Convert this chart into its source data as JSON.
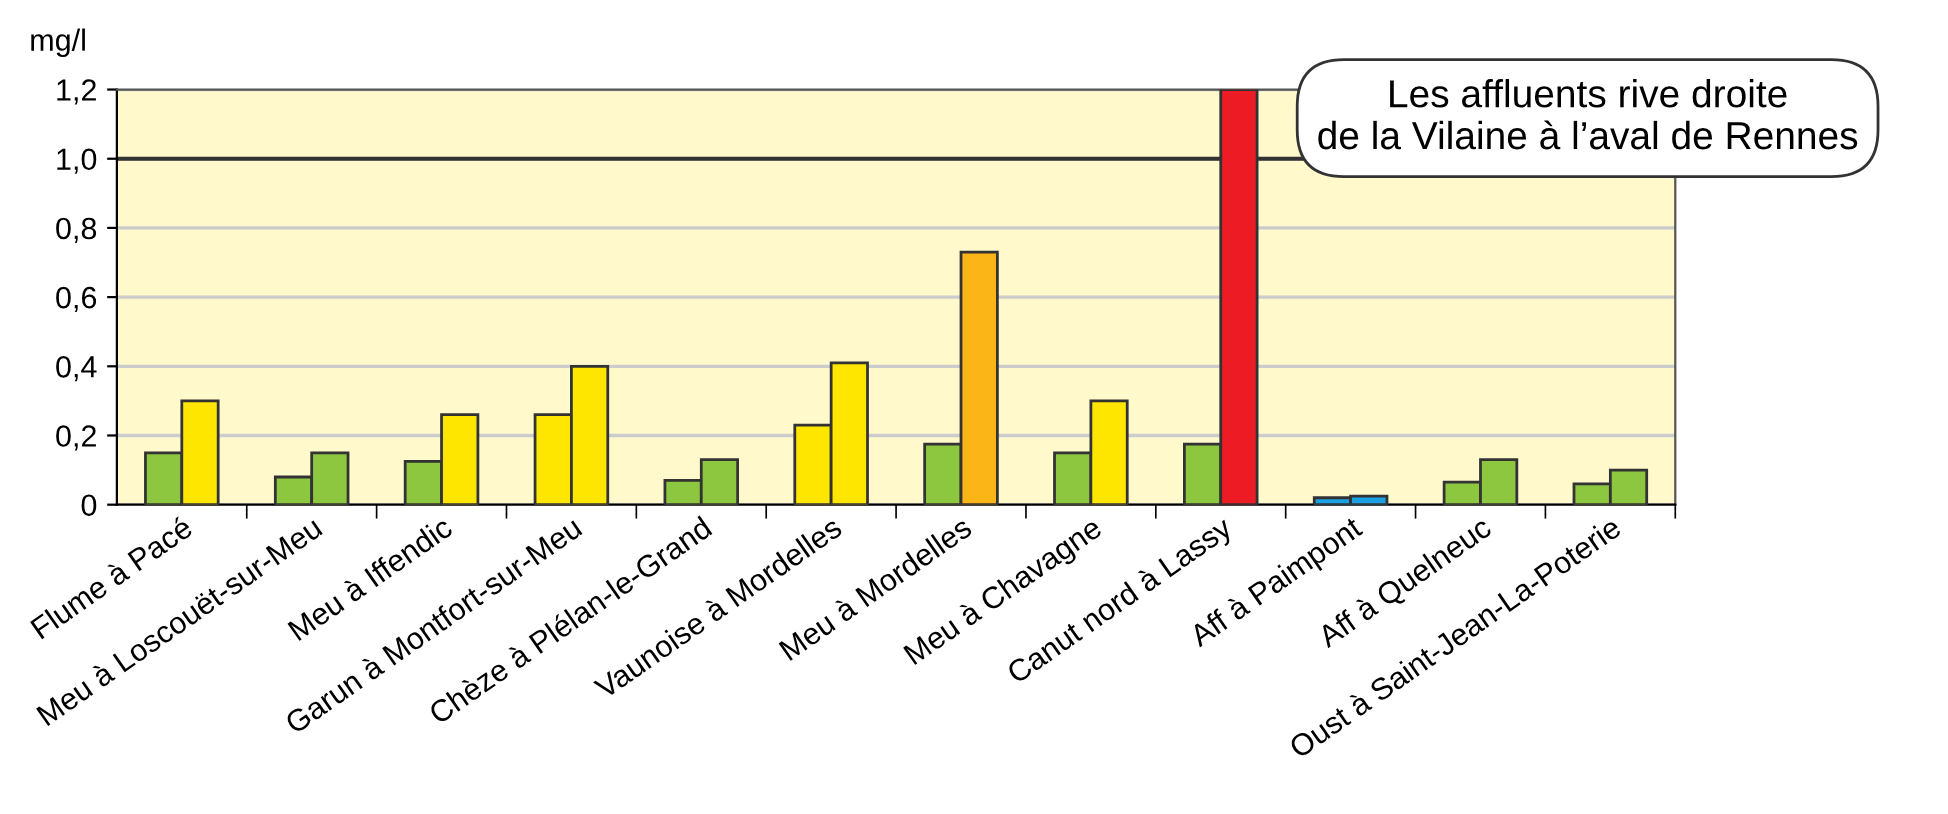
{
  "chart_data": {
    "type": "bar",
    "title": "Les affluents rive droite\nde la Vilaine à l’aval de Rennes",
    "ylabel": "mg/l",
    "categories": [
      "Flume à Pacé",
      "Meu à Loscouët-sur-Meu",
      "Meu à Iffendic",
      "Garun à Montfort-sur-Meu",
      "Chèze à Plélan-le-Grand",
      "Vaunoise à Mordelles",
      "Meu à Mordelles",
      "Meu à Chavagne",
      "Canut nord à Lassy",
      "Aff à Paimpont",
      "Aff à Quelneuc",
      "Oust à Saint-Jean-La-Poterie"
    ],
    "series": [
      {
        "values": [
          0.15,
          0.08,
          0.125,
          0.26,
          0.07,
          0.23,
          0.175,
          0.15,
          0.175,
          0.02,
          0.065,
          0.06
        ],
        "colors": [
          "#8dc63f",
          "#8dc63f",
          "#8dc63f",
          "#ffe600",
          "#8dc63f",
          "#ffe600",
          "#8dc63f",
          "#8dc63f",
          "#8dc63f",
          "#1ba1e2",
          "#8dc63f",
          "#8dc63f"
        ]
      },
      {
        "values": [
          0.3,
          0.15,
          0.26,
          0.4,
          0.13,
          0.41,
          0.73,
          0.3,
          1.2,
          0.025,
          0.13,
          0.1
        ],
        "colors": [
          "#ffe600",
          "#8dc63f",
          "#ffe600",
          "#ffe600",
          "#8dc63f",
          "#ffe600",
          "#fbb516",
          "#ffe600",
          "#ed1c24",
          "#1ba1e2",
          "#8dc63f",
          "#8dc63f"
        ]
      }
    ],
    "ylim": [
      0,
      1.2
    ],
    "yticks": [
      {
        "value": 0,
        "label": "0"
      },
      {
        "value": 0.2,
        "label": "0,2"
      },
      {
        "value": 0.4,
        "label": "0,4"
      },
      {
        "value": 0.6,
        "label": "0,6"
      },
      {
        "value": 0.8,
        "label": "0,8"
      },
      {
        "value": 1.0,
        "label": "1,0"
      },
      {
        "value": 1.2,
        "label": "1,2"
      }
    ],
    "ref_lines": [
      {
        "axis": "y",
        "value": 1.0,
        "color": "#333333"
      }
    ],
    "grid": "y",
    "legend": false
  }
}
